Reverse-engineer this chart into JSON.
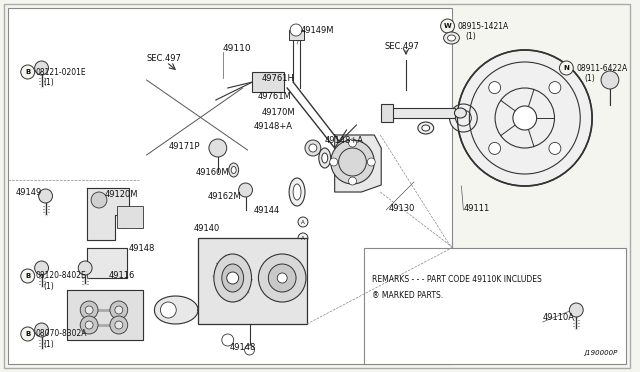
{
  "bg_color": "#f5f5f0",
  "line_color": "#333333",
  "text_color": "#111111",
  "fig_width": 6.4,
  "fig_height": 3.72,
  "dpi": 100,
  "remarks_line1": "REMARKS - - - PART CODE 49110K INCLUDES",
  "remarks_line2": "® MARKED PARTS.",
  "diagram_num": "J190000P",
  "border_lw": 0.8
}
